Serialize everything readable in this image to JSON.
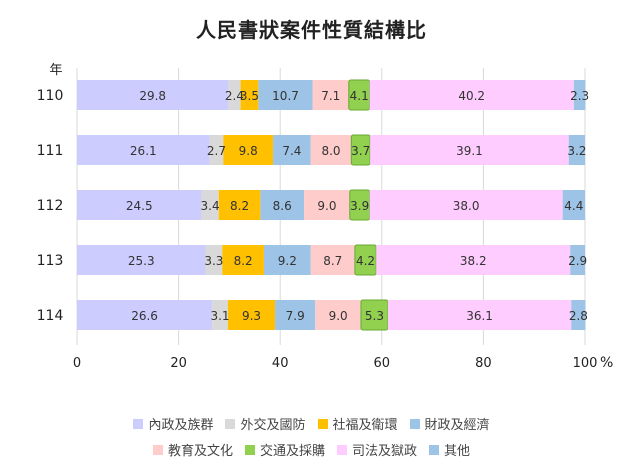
{
  "chart_data": {
    "type": "bar",
    "orientation": "horizontal",
    "stacked": true,
    "title": "人民書狀案件性質結構比",
    "ylabel": "年",
    "xunit": "%",
    "xlim": [
      0,
      100
    ],
    "xticks": [
      0,
      20,
      40,
      60,
      80,
      100
    ],
    "categories": [
      "110",
      "111",
      "112",
      "113",
      "114"
    ],
    "grid": true,
    "legend_position": "bottom",
    "series": [
      {
        "name": "內政及族群",
        "color": "#ccccff",
        "values": [
          29.8,
          26.1,
          24.5,
          25.3,
          26.6
        ]
      },
      {
        "name": "外交及國防",
        "color": "#d9d9d9",
        "values": [
          2.4,
          2.7,
          3.4,
          3.3,
          3.1
        ]
      },
      {
        "name": "社福及衛環",
        "color": "#ffc000",
        "values": [
          3.5,
          9.8,
          8.2,
          8.2,
          9.3
        ]
      },
      {
        "name": "財政及經濟",
        "color": "#9dc3e6",
        "values": [
          10.7,
          7.4,
          8.6,
          9.2,
          7.9
        ]
      },
      {
        "name": "教育及文化",
        "color": "#ffcccc",
        "values": [
          7.1,
          8.0,
          9.0,
          8.7,
          9.0
        ]
      },
      {
        "name": "交通及採購",
        "color": "#92d050",
        "values": [
          4.1,
          3.7,
          3.9,
          4.2,
          5.3
        ]
      },
      {
        "name": "司法及獄政",
        "color": "#ffccff",
        "values": [
          40.2,
          39.1,
          38.0,
          38.2,
          36.1
        ]
      },
      {
        "name": "其他",
        "color": "#9dc3e6",
        "values": [
          2.3,
          3.2,
          4.4,
          2.9,
          2.8
        ]
      }
    ]
  }
}
